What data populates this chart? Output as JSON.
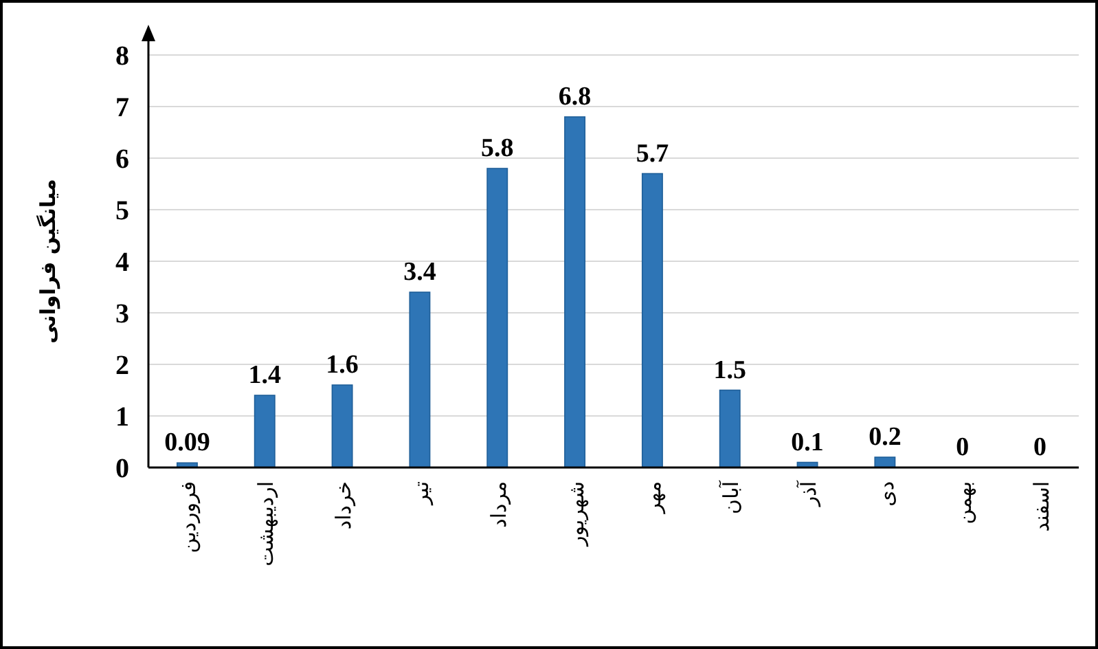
{
  "chart_data": {
    "type": "bar",
    "ylabel": "میانگین فراوانی",
    "categories": [
      "فروردین",
      "اردیبهشت",
      "خرداد",
      "تیر",
      "مرداد",
      "شهریور",
      "مهر",
      "آبان",
      "آذر",
      "دی",
      "بهمن",
      "اسفند"
    ],
    "values": [
      0.09,
      1.4,
      1.6,
      3.4,
      5.8,
      6.8,
      5.7,
      1.5,
      0.1,
      0.2,
      0,
      0
    ],
    "color": "#2e75b6",
    "ylim": [
      0,
      8
    ],
    "yticks": [
      0,
      1,
      2,
      3,
      4,
      5,
      6,
      7,
      8
    ],
    "grid": "y",
    "data_labels": true
  }
}
